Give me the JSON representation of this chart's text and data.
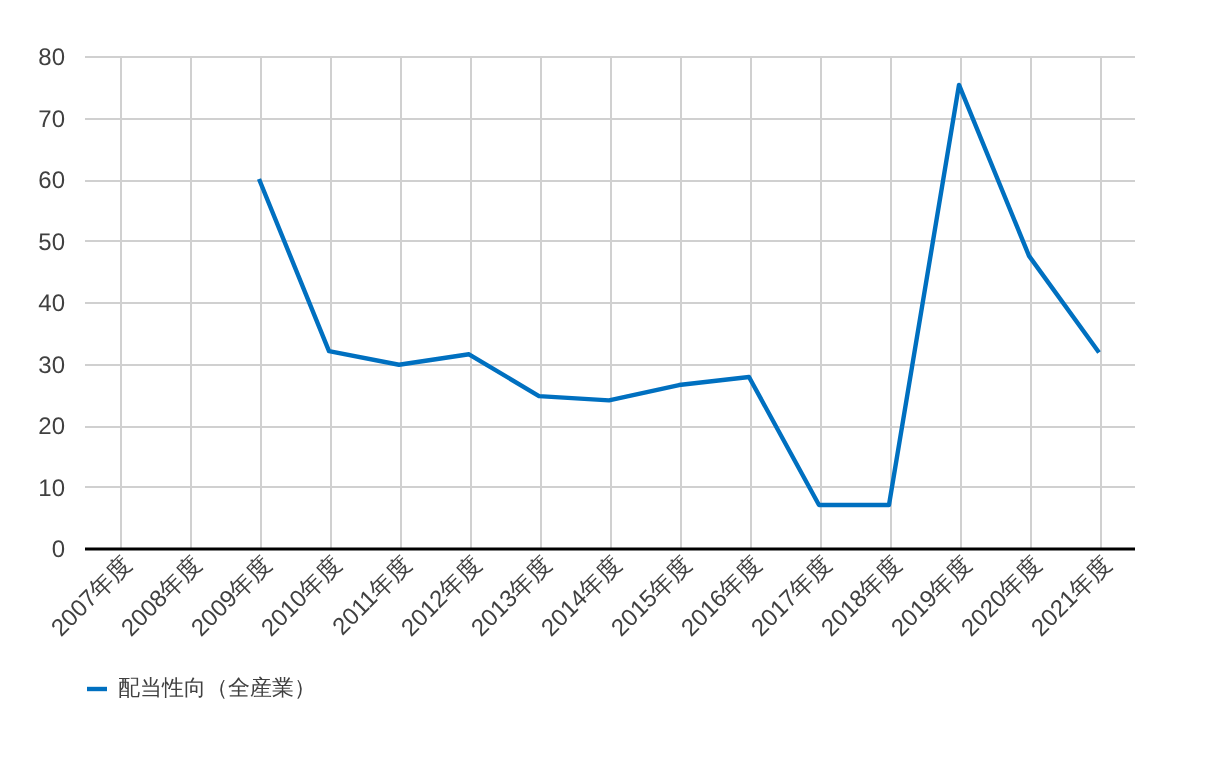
{
  "chart_data": {
    "type": "line",
    "categories": [
      "2007年度",
      "2008年度",
      "2009年度",
      "2010年度",
      "2011年度",
      "2012年度",
      "2013年度",
      "2014年度",
      "2015年度",
      "2016年度",
      "2017年度",
      "2018年度",
      "2019年度",
      "2020年度",
      "2021年度"
    ],
    "series": [
      {
        "name": "配当性向（全産業）",
        "color": "#0070c0",
        "values": [
          null,
          null,
          60,
          32,
          29.8,
          31.5,
          24.7,
          24,
          26.5,
          27.8,
          7,
          7,
          75.3,
          47.5,
          31.8
        ]
      }
    ],
    "ylim": [
      0,
      80
    ],
    "yticks": [
      0,
      10,
      20,
      30,
      40,
      50,
      60,
      70,
      80
    ],
    "grid": true,
    "legend": "bottom",
    "marker": "none",
    "line_style": "solid"
  }
}
